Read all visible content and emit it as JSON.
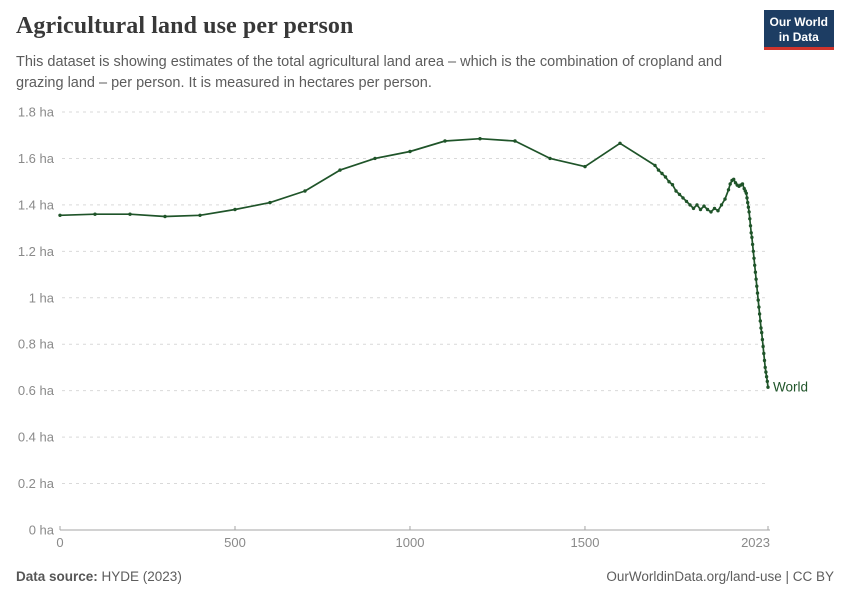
{
  "header": {
    "title": "Agricultural land use per person",
    "subtitle": "This dataset is showing estimates of the total agricultural land area – which is the combination of cropland and grazing land – per person. It is measured in hectares per person.",
    "logo": {
      "line1": "Our World",
      "line2": "in Data",
      "bg_color": "#1d3d63",
      "accent_color": "#d0342c"
    }
  },
  "chart_data": {
    "type": "line",
    "title": "Agricultural land use per person",
    "unit": "hectares per person",
    "xlabel": "",
    "ylabel": "",
    "xlim": [
      0,
      2023
    ],
    "ylim": [
      0,
      1.8
    ],
    "x_ticks": [
      0,
      500,
      1000,
      1500,
      2023
    ],
    "x_tick_labels": [
      "0",
      "500",
      "1000",
      "1500",
      "2023"
    ],
    "y_ticks": [
      0,
      0.2,
      0.4,
      0.6,
      0.8,
      1,
      1.2,
      1.4,
      1.6,
      1.8
    ],
    "y_tick_labels": [
      "0 ha",
      "0.2 ha",
      "0.4 ha",
      "0.6 ha",
      "0.8 ha",
      "1 ha",
      "1.2 ha",
      "1.4 ha",
      "1.6 ha",
      "1.8 ha"
    ],
    "grid": "horizontal-dashed",
    "legend_position": "end-of-line",
    "colors": {
      "grid": "#d9d9d9",
      "axis_line": "#a5a5a5",
      "axis_text": "#8a8a8a"
    },
    "series": [
      {
        "name": "World",
        "color": "#1f5429",
        "points": [
          [
            0,
            1.355
          ],
          [
            100,
            1.36
          ],
          [
            200,
            1.36
          ],
          [
            300,
            1.35
          ],
          [
            400,
            1.355
          ],
          [
            500,
            1.38
          ],
          [
            600,
            1.41
          ],
          [
            700,
            1.46
          ],
          [
            800,
            1.55
          ],
          [
            900,
            1.6
          ],
          [
            1000,
            1.63
          ],
          [
            1100,
            1.675
          ],
          [
            1200,
            1.685
          ],
          [
            1300,
            1.675
          ],
          [
            1400,
            1.6
          ],
          [
            1500,
            1.565
          ],
          [
            1600,
            1.665
          ],
          [
            1700,
            1.57
          ],
          [
            1710,
            1.55
          ],
          [
            1720,
            1.535
          ],
          [
            1730,
            1.52
          ],
          [
            1740,
            1.5
          ],
          [
            1750,
            1.487
          ],
          [
            1760,
            1.46
          ],
          [
            1770,
            1.445
          ],
          [
            1780,
            1.43
          ],
          [
            1790,
            1.415
          ],
          [
            1800,
            1.4
          ],
          [
            1810,
            1.385
          ],
          [
            1820,
            1.4
          ],
          [
            1830,
            1.38
          ],
          [
            1840,
            1.395
          ],
          [
            1850,
            1.38
          ],
          [
            1860,
            1.37
          ],
          [
            1870,
            1.385
          ],
          [
            1880,
            1.375
          ],
          [
            1890,
            1.4
          ],
          [
            1900,
            1.425
          ],
          [
            1910,
            1.465
          ],
          [
            1915,
            1.49
          ],
          [
            1920,
            1.505
          ],
          [
            1925,
            1.51
          ],
          [
            1930,
            1.495
          ],
          [
            1935,
            1.485
          ],
          [
            1940,
            1.48
          ],
          [
            1945,
            1.485
          ],
          [
            1950,
            1.49
          ],
          [
            1955,
            1.47
          ],
          [
            1958,
            1.46
          ],
          [
            1961,
            1.45
          ],
          [
            1963,
            1.43
          ],
          [
            1965,
            1.41
          ],
          [
            1967,
            1.39
          ],
          [
            1969,
            1.37
          ],
          [
            1971,
            1.34
          ],
          [
            1973,
            1.31
          ],
          [
            1975,
            1.28
          ],
          [
            1977,
            1.26
          ],
          [
            1979,
            1.23
          ],
          [
            1981,
            1.2
          ],
          [
            1983,
            1.17
          ],
          [
            1985,
            1.14
          ],
          [
            1987,
            1.11
          ],
          [
            1989,
            1.08
          ],
          [
            1991,
            1.05
          ],
          [
            1993,
            1.02
          ],
          [
            1995,
            0.99
          ],
          [
            1997,
            0.96
          ],
          [
            1999,
            0.93
          ],
          [
            2001,
            0.9
          ],
          [
            2003,
            0.87
          ],
          [
            2005,
            0.85
          ],
          [
            2007,
            0.82
          ],
          [
            2009,
            0.79
          ],
          [
            2011,
            0.76
          ],
          [
            2013,
            0.73
          ],
          [
            2015,
            0.7
          ],
          [
            2017,
            0.68
          ],
          [
            2019,
            0.66
          ],
          [
            2021,
            0.64
          ],
          [
            2023,
            0.615
          ]
        ]
      }
    ]
  },
  "footer": {
    "source_label": "Data source:",
    "source_value": " HYDE (2023)",
    "credit": "OurWorldinData.org/land-use | CC BY"
  }
}
